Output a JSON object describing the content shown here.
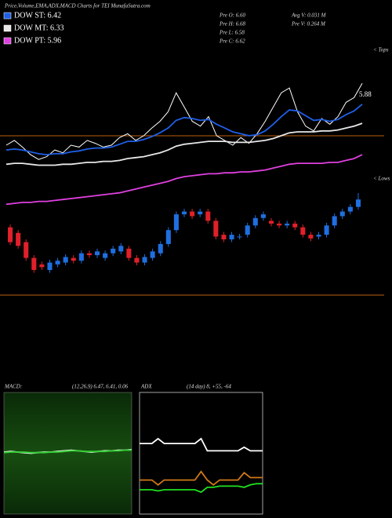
{
  "chart_data": [
    {
      "type": "candlestick",
      "title": "Price,Volume,EMA,ADX,MACD Charts for TEI MunafaSutra.com",
      "stats": [
        "Pre  O: 6.60",
        "Pre  H: 6.68",
        "Pre  L: 6.58",
        "Pre  C: 6.62",
        "Avg V: 0.031  M",
        "Pre  V: 0.264  M"
      ],
      "ylim": [
        5.7,
        6.8
      ],
      "up_color": "#1f6fe0",
      "down_color": "#e0202a",
      "open": [
        6.38,
        6.32,
        6.22,
        6.05,
        5.98,
        5.92,
        5.98,
        6.0,
        6.05,
        6.02,
        6.1,
        6.08,
        6.05,
        6.1,
        6.12,
        6.15,
        6.05,
        6.0,
        6.05,
        6.1,
        6.2,
        6.35,
        6.52,
        6.55,
        6.52,
        6.55,
        6.45,
        6.3,
        6.25,
        6.28,
        6.3,
        6.4,
        6.48,
        6.45,
        6.42,
        6.4,
        6.42,
        6.38,
        6.3,
        6.28,
        6.3,
        6.4,
        6.5,
        6.55,
        6.6
      ],
      "high": [
        6.41,
        6.35,
        6.25,
        6.08,
        6.01,
        6.03,
        6.05,
        6.09,
        6.08,
        6.13,
        6.13,
        6.15,
        6.13,
        6.18,
        6.21,
        6.18,
        6.08,
        6.09,
        6.15,
        6.23,
        6.38,
        6.55,
        6.58,
        6.58,
        6.58,
        6.58,
        6.48,
        6.33,
        6.33,
        6.31,
        6.43,
        6.51,
        6.55,
        6.48,
        6.45,
        6.45,
        6.45,
        6.41,
        6.33,
        6.33,
        6.43,
        6.53,
        6.58,
        6.63,
        6.75
      ],
      "low": [
        6.19,
        6.15,
        6.02,
        5.89,
        5.92,
        5.89,
        5.95,
        5.97,
        5.99,
        5.99,
        6.05,
        6.05,
        6.02,
        6.07,
        6.09,
        6.02,
        5.97,
        5.97,
        6.02,
        6.07,
        6.17,
        6.32,
        6.49,
        6.47,
        6.49,
        6.42,
        6.25,
        6.22,
        6.22,
        6.25,
        6.27,
        6.37,
        6.45,
        6.39,
        6.37,
        6.37,
        6.35,
        6.27,
        6.23,
        6.25,
        6.27,
        6.37,
        6.47,
        6.52,
        6.57
      ],
      "close": [
        6.22,
        6.18,
        6.05,
        5.92,
        5.95,
        6.0,
        6.02,
        6.06,
        6.02,
        6.1,
        6.08,
        6.12,
        6.1,
        6.15,
        6.18,
        6.05,
        6.0,
        6.06,
        6.12,
        6.2,
        6.35,
        6.52,
        6.55,
        6.5,
        6.55,
        6.45,
        6.28,
        6.25,
        6.3,
        6.28,
        6.4,
        6.48,
        6.52,
        6.42,
        6.4,
        6.42,
        6.38,
        6.3,
        6.26,
        6.3,
        6.4,
        6.5,
        6.55,
        6.6,
        6.68
      ]
    },
    {
      "type": "line",
      "ylim": [
        4.8,
        6.2
      ],
      "annotations": [
        "5.88",
        "< Tops",
        "< Lows"
      ],
      "series": [
        {
          "color": "#ffffff",
          "values": [
            5.5,
            5.55,
            5.48,
            5.4,
            5.35,
            5.38,
            5.45,
            5.42,
            5.5,
            5.48,
            5.55,
            5.52,
            5.48,
            5.5,
            5.58,
            5.62,
            5.55,
            5.6,
            5.68,
            5.75,
            5.85,
            6.05,
            5.9,
            5.75,
            5.7,
            5.8,
            5.6,
            5.55,
            5.5,
            5.58,
            5.52,
            5.62,
            5.75,
            5.9,
            6.05,
            6.1,
            5.85,
            5.7,
            5.65,
            5.78,
            5.72,
            5.8,
            5.95,
            6.0,
            6.15
          ]
        },
        {
          "name": "DOW ST: 6.42",
          "color": "#1f5fe6",
          "values": [
            5.45,
            5.46,
            5.45,
            5.43,
            5.41,
            5.4,
            5.41,
            5.41,
            5.43,
            5.44,
            5.46,
            5.47,
            5.47,
            5.48,
            5.51,
            5.54,
            5.54,
            5.56,
            5.59,
            5.63,
            5.68,
            5.76,
            5.79,
            5.78,
            5.76,
            5.77,
            5.72,
            5.68,
            5.64,
            5.62,
            5.6,
            5.61,
            5.65,
            5.72,
            5.8,
            5.87,
            5.86,
            5.81,
            5.76,
            5.77,
            5.75,
            5.77,
            5.82,
            5.86,
            5.93
          ]
        },
        {
          "name": "DOW MT: 6.33",
          "color": "#e8e8e8",
          "values": [
            5.3,
            5.31,
            5.31,
            5.3,
            5.29,
            5.29,
            5.29,
            5.3,
            5.3,
            5.31,
            5.32,
            5.32,
            5.33,
            5.33,
            5.34,
            5.36,
            5.37,
            5.38,
            5.4,
            5.42,
            5.45,
            5.49,
            5.51,
            5.52,
            5.53,
            5.54,
            5.54,
            5.54,
            5.53,
            5.53,
            5.53,
            5.54,
            5.55,
            5.57,
            5.6,
            5.63,
            5.64,
            5.64,
            5.64,
            5.65,
            5.65,
            5.66,
            5.68,
            5.7,
            5.73
          ]
        },
        {
          "name": "DOW PT: 5.96",
          "color": "#e040e0",
          "values": [
            4.88,
            4.89,
            4.9,
            4.9,
            4.91,
            4.91,
            4.92,
            4.93,
            4.94,
            4.95,
            4.96,
            4.97,
            4.98,
            4.99,
            5.0,
            5.02,
            5.04,
            5.06,
            5.08,
            5.1,
            5.12,
            5.15,
            5.17,
            5.18,
            5.19,
            5.2,
            5.2,
            5.21,
            5.21,
            5.22,
            5.22,
            5.23,
            5.24,
            5.26,
            5.28,
            5.3,
            5.31,
            5.31,
            5.31,
            5.31,
            5.32,
            5.32,
            5.34,
            5.36,
            5.4
          ]
        }
      ]
    },
    {
      "type": "line",
      "title": "MACD:",
      "subtitle": "(12,26,9) 6.47, 6.41, 0.06",
      "ylim": [
        -1,
        1
      ],
      "series": [
        {
          "color": "#ffffff",
          "values": [
            0.02,
            0.03,
            0.02,
            0.01,
            0.0,
            0.01,
            0.02,
            0.02,
            0.03,
            0.04,
            0.05,
            0.04,
            0.03,
            0.02,
            0.03,
            0.04,
            0.04,
            0.05,
            0.05,
            0.06
          ]
        },
        {
          "color": "#30d030",
          "values": [
            0.01,
            0.02,
            0.02,
            0.02,
            0.01,
            0.01,
            0.01,
            0.02,
            0.02,
            0.03,
            0.04,
            0.04,
            0.03,
            0.03,
            0.03,
            0.03,
            0.04,
            0.04,
            0.05,
            0.05
          ]
        }
      ]
    },
    {
      "type": "line",
      "title": "ADX",
      "subtitle": "(14 day) 8, +55, -64",
      "ylim": [
        0,
        100
      ],
      "series": [
        {
          "color": "#ffffff",
          "values": [
            58,
            58,
            58,
            62,
            58,
            58,
            58,
            58,
            58,
            58,
            62,
            52,
            52,
            52,
            52,
            52,
            52,
            55,
            52,
            52,
            52
          ]
        },
        {
          "color": "#d07818",
          "values": [
            28,
            28,
            28,
            24,
            28,
            28,
            28,
            28,
            28,
            28,
            35,
            28,
            24,
            28,
            28,
            28,
            28,
            34,
            30,
            30,
            30
          ]
        },
        {
          "color": "#20e020",
          "values": [
            20,
            20,
            20,
            19,
            20,
            20,
            20,
            20,
            20,
            20,
            18,
            22,
            22,
            23,
            23,
            23,
            23,
            22,
            24,
            25,
            25
          ]
        }
      ]
    }
  ]
}
